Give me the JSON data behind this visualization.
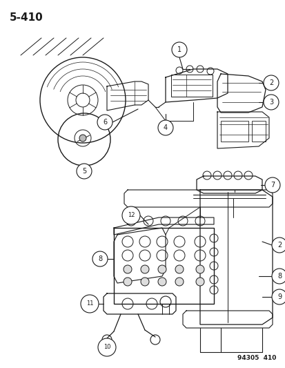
{
  "page_label": "5-410",
  "catalog_num": "94305  410",
  "bg_color": "#ffffff",
  "line_color": "#1a1a1a",
  "figsize": [
    4.14,
    5.33
  ],
  "dpi": 100
}
